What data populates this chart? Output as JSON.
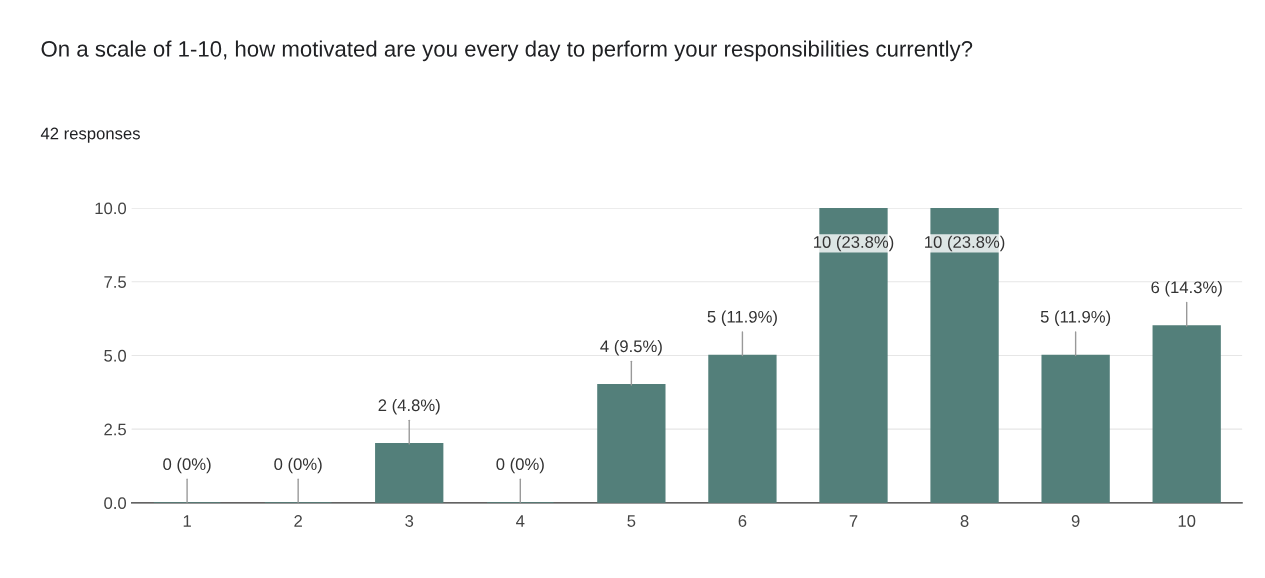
{
  "chart_data": {
    "type": "bar",
    "title": "On a scale of 1-10, how motivated are you every day to perform your responsibilities currently?",
    "subtitle": "42 responses",
    "categories": [
      "1",
      "2",
      "3",
      "4",
      "5",
      "6",
      "7",
      "8",
      "9",
      "10"
    ],
    "values": [
      0,
      0,
      2,
      0,
      4,
      5,
      10,
      10,
      5,
      6
    ],
    "value_labels": [
      "0 (0%)",
      "0 (0%)",
      "2 (4.8%)",
      "0 (0%)",
      "4 (9.5%)",
      "5 (11.9%)",
      "10 (23.8%)",
      "10 (23.8%)",
      "5 (11.9%)",
      "6 (14.3%)"
    ],
    "color": "#537f7a",
    "ylim": [
      0,
      10
    ],
    "yticks": [
      "0.0",
      "2.5",
      "5.0",
      "7.5",
      "10.0"
    ],
    "grid": "y"
  }
}
